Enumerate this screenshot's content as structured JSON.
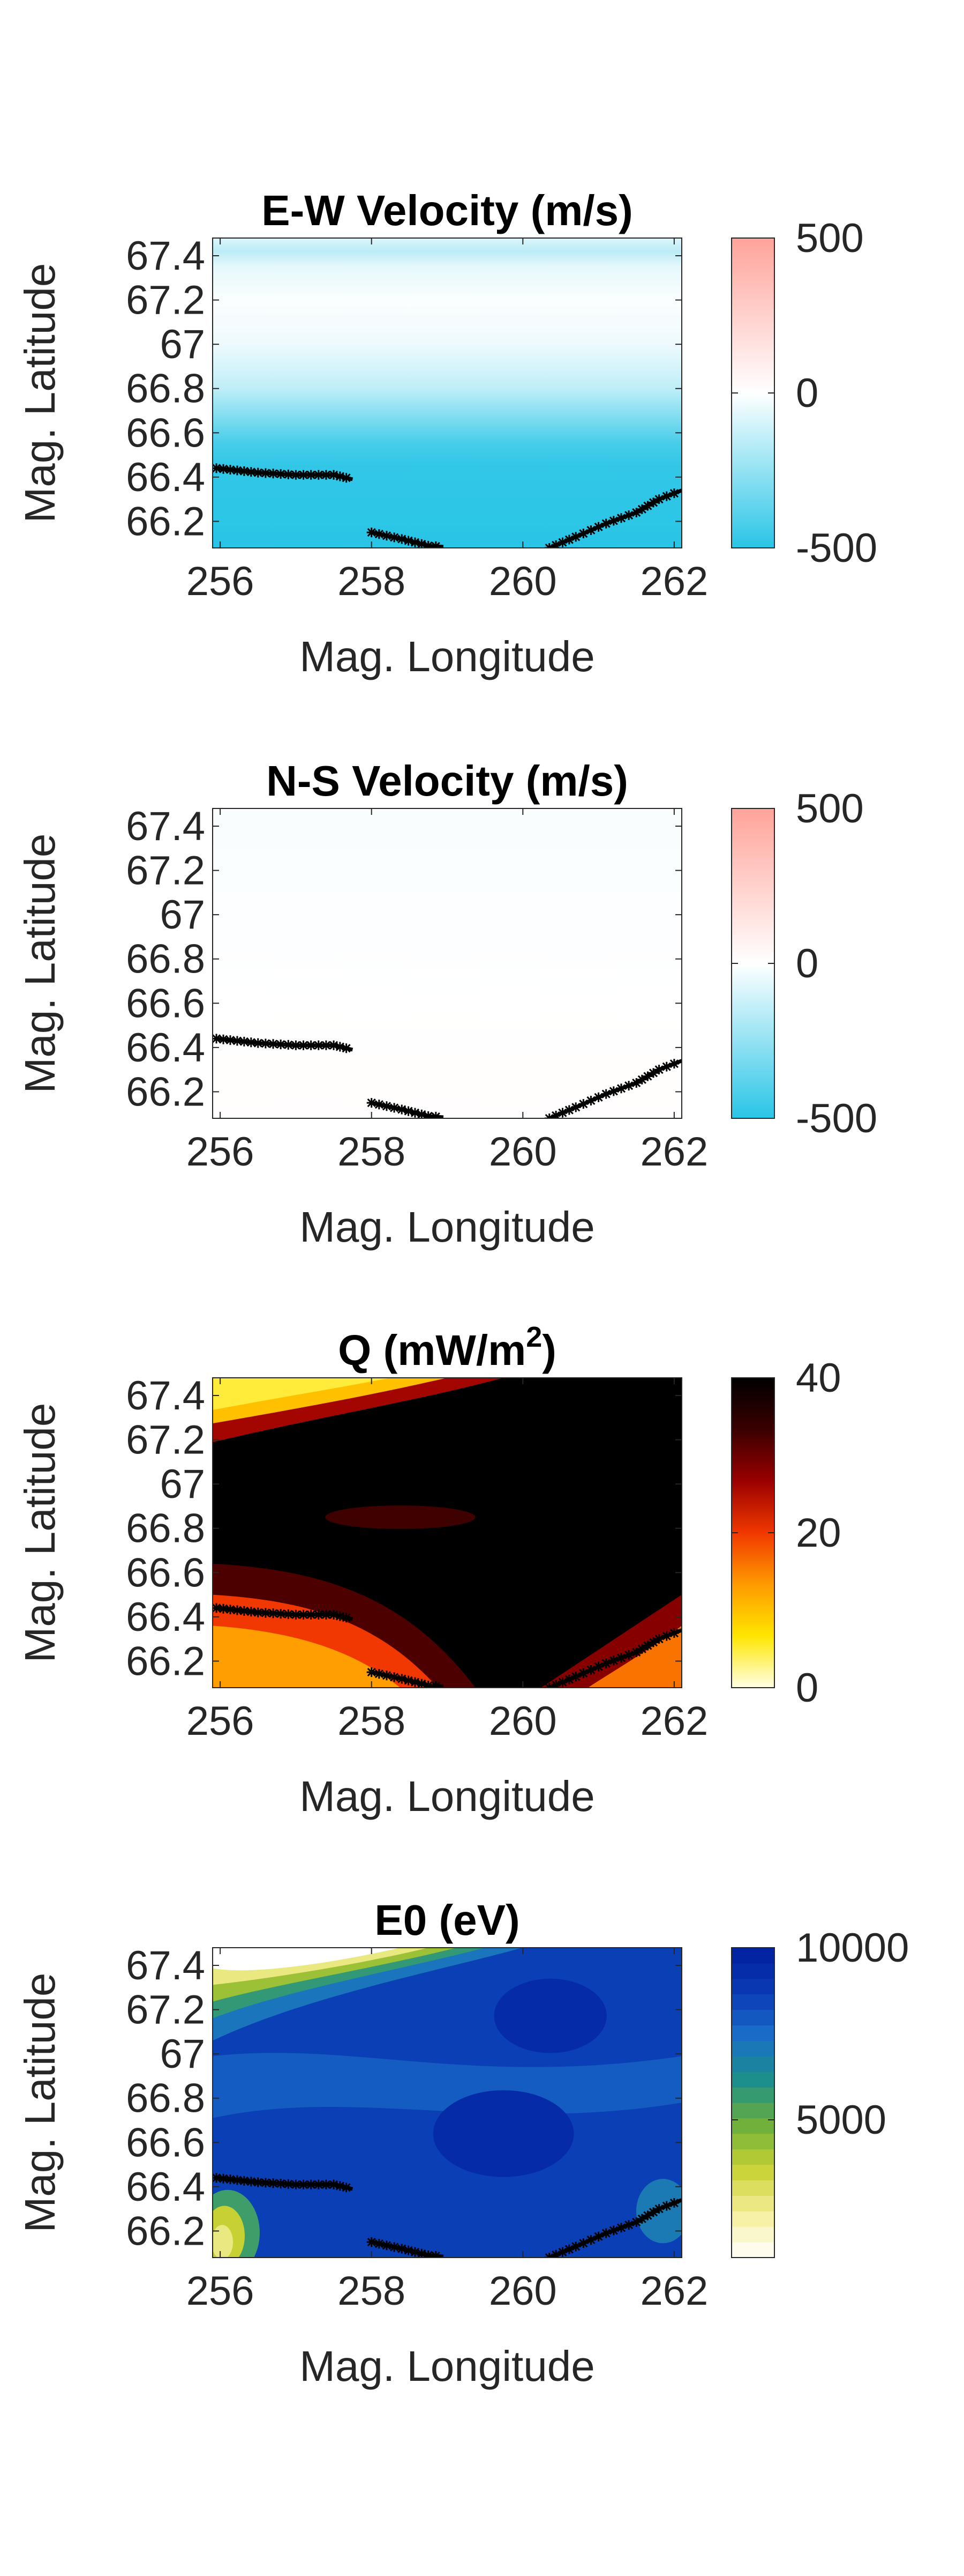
{
  "chart_data": [
    {
      "type": "heatmap",
      "title": "E-W Velocity (m/s)",
      "xlabel": "Mag. Longitude",
      "ylabel": "Mag. Latitude",
      "xlim": [
        255.9,
        262.1
      ],
      "ylim": [
        66.08,
        67.48
      ],
      "xticks": [
        "256",
        "258",
        "260",
        "262"
      ],
      "yticks": [
        "66.2",
        "66.4",
        "66.6",
        "66.8",
        "67",
        "67.2",
        "67.4"
      ],
      "colorbar": {
        "min": -500,
        "max": 500,
        "ticks": [
          "-500",
          "0",
          "500"
        ],
        "colors": [
          "#29c5e6",
          "#ffffff",
          "#ffa39a"
        ]
      },
      "field": {
        "rows_lat": [
          67.48,
          67.42,
          67.35,
          67.2,
          67.0,
          66.8,
          66.65,
          66.55,
          66.45,
          66.08
        ],
        "values": [
          -80,
          -160,
          -60,
          -10,
          -40,
          -150,
          -320,
          -430,
          -480,
          -500
        ]
      }
    },
    {
      "type": "heatmap",
      "title": "N-S Velocity (m/s)",
      "xlabel": "Mag. Longitude",
      "ylabel": "Mag. Latitude",
      "xlim": [
        255.9,
        262.1
      ],
      "ylim": [
        66.08,
        67.48
      ],
      "xticks": [
        "256",
        "258",
        "260",
        "262"
      ],
      "yticks": [
        "66.2",
        "66.4",
        "66.6",
        "66.8",
        "67",
        "67.2",
        "67.4"
      ],
      "colorbar": {
        "min": -500,
        "max": 500,
        "ticks": [
          "-500",
          "0",
          "500"
        ],
        "colors": [
          "#29c5e6",
          "#ffffff",
          "#ffa39a"
        ]
      },
      "field": {
        "rows_lat": [
          67.48,
          67.0,
          66.6,
          66.3,
          66.08
        ],
        "values": [
          -15,
          -8,
          0,
          8,
          12
        ]
      }
    },
    {
      "type": "heatmap",
      "title": "Q (mW/m",
      "title_sup": "2",
      "title_end": ")",
      "xlabel": "Mag. Longitude",
      "ylabel": "Mag. Latitude",
      "xlim": [
        255.9,
        262.1
      ],
      "ylim": [
        66.08,
        67.48
      ],
      "xticks": [
        "256",
        "258",
        "260",
        "262"
      ],
      "yticks": [
        "66.2",
        "66.4",
        "66.6",
        "66.8",
        "67",
        "67.2",
        "67.4"
      ],
      "colorbar": {
        "min": 0,
        "max": 40,
        "ticks": [
          "0",
          "20",
          "40"
        ],
        "colors": [
          "#ffffe6",
          "#ffe600",
          "#ff9a00",
          "#f03800",
          "#9a0000",
          "#3a0000",
          "#000000"
        ]
      },
      "field": {
        "lat_bands": [
          {
            "lat_top": 67.48,
            "lat_bottom": 67.2,
            "values": [
              4,
              40
            ]
          },
          {
            "lat_top": 67.2,
            "lat_bottom": 66.45,
            "values": [
              40,
              40
            ]
          },
          {
            "lat_top": 66.45,
            "lat_bottom": 66.08,
            "values": [
              14,
              40,
              12
            ]
          }
        ]
      }
    },
    {
      "type": "heatmap",
      "title": "E0 (eV)",
      "xlabel": "Mag. Longitude",
      "ylabel": "Mag. Latitude",
      "xlim": [
        255.9,
        262.1
      ],
      "ylim": [
        66.08,
        67.48
      ],
      "xticks": [
        "256",
        "258",
        "260",
        "262"
      ],
      "yticks": [
        "66.2",
        "66.4",
        "66.6",
        "66.8",
        "67",
        "67.2",
        "67.4"
      ],
      "colorbar": {
        "min": 1000,
        "max": 10000,
        "ticks": [
          "5000",
          "10000"
        ],
        "colors": [
          "#ffffff",
          "#f5ef9a",
          "#c9d233",
          "#6db03a",
          "#1c8f8a",
          "#1a6fc8",
          "#0a3ab4",
          "#001e9e"
        ]
      },
      "field": {
        "background": 8000,
        "low_corner_upper_left": 500,
        "low_corner_lower_left": 3000
      }
    }
  ],
  "boundary_line": {
    "label": "",
    "segments": [
      [
        [
          255.95,
          66.44
        ],
        [
          256.5,
          66.42
        ],
        [
          257.0,
          66.41
        ],
        [
          257.5,
          66.41
        ],
        [
          257.75,
          66.39
        ]
      ],
      [
        [
          258.0,
          66.15
        ],
        [
          258.4,
          66.12
        ],
        [
          258.75,
          66.09
        ],
        [
          258.95,
          66.085
        ]
      ],
      [
        [
          260.35,
          66.08
        ],
        [
          260.7,
          66.13
        ],
        [
          261.1,
          66.19
        ],
        [
          261.5,
          66.24
        ],
        [
          261.8,
          66.3
        ],
        [
          262.1,
          66.34
        ]
      ]
    ]
  }
}
